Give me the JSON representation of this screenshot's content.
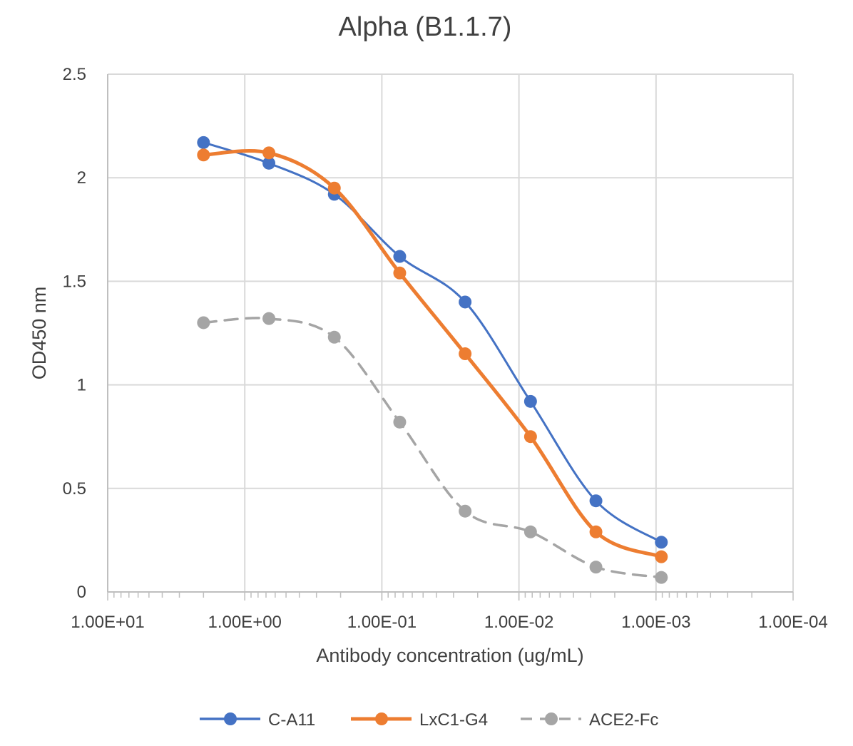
{
  "chart_data": {
    "type": "line",
    "title": "Alpha (B1.1.7)",
    "xlabel": "Antibody concentration (ug/mL)",
    "ylabel": "OD450 nm",
    "x_scale": "log-reversed",
    "xlim": [
      10,
      0.0001
    ],
    "ylim": [
      0,
      2.5
    ],
    "y_ticks": [
      "0",
      "0.5",
      "1",
      "1.5",
      "2",
      "2.5"
    ],
    "x_ticks": [
      "1.00E+01",
      "1.00E+00",
      "1.00E-01",
      "1.00E-02",
      "1.00E-03",
      "1.00E-04"
    ],
    "x": [
      2,
      0.6667,
      0.2222,
      0.07407,
      0.02469,
      0.00823,
      0.002743,
      0.0009145
    ],
    "series": [
      {
        "name": "C-A11",
        "color": "#4472c4",
        "dash": "solid",
        "values": [
          2.17,
          2.07,
          1.92,
          1.62,
          1.4,
          0.92,
          0.44,
          0.24
        ]
      },
      {
        "name": "LxC1-G4",
        "color": "#ed7d31",
        "dash": "solid",
        "values": [
          2.11,
          2.12,
          1.95,
          1.54,
          1.15,
          0.75,
          0.29,
          0.17
        ]
      },
      {
        "name": "ACE2-Fc",
        "color": "#a5a5a5",
        "dash": "dashed",
        "values": [
          1.3,
          1.32,
          1.23,
          0.82,
          0.39,
          0.29,
          0.12,
          0.07
        ]
      }
    ],
    "legend_position": "bottom",
    "grid": true
  }
}
